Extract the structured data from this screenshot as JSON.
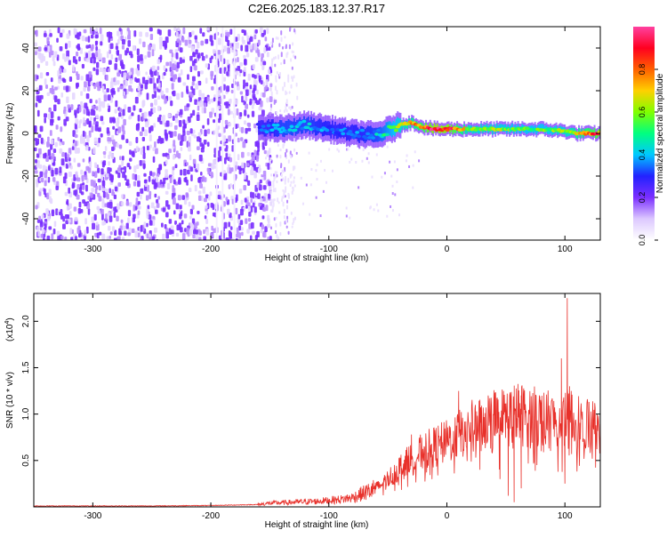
{
  "title": "C2E6.2025.183.12.37.R17",
  "chart_data": [
    {
      "type": "heatmap",
      "xlabel": "Height of straight line (km)",
      "ylabel": "Frequency (Hz)",
      "xlim": [
        -350,
        130
      ],
      "ylim": [
        -50,
        50
      ],
      "x_ticks": [
        -300,
        -200,
        -100,
        0,
        100
      ],
      "x_tick_labels": [
        "-300",
        "-200",
        "-100",
        "0",
        "100"
      ],
      "y_ticks": [
        -40,
        -20,
        0,
        20,
        40
      ],
      "y_tick_labels": [
        "-40",
        "-20",
        "0",
        "20",
        "40"
      ],
      "colorbar": {
        "label": "Normalized spectral amplitude",
        "range": [
          0.0,
          1.0
        ],
        "ticks": [
          0.0,
          0.2,
          0.4,
          0.6,
          0.8
        ],
        "tick_labels": [
          "0.0",
          "0.2",
          "0.4",
          "0.6",
          "0.8"
        ],
        "colormap": [
          "#ffffff",
          "#dcc8ff",
          "#7b2fff",
          "#2222ff",
          "#00c8ff",
          "#00ff80",
          "#80ff00",
          "#ffd000",
          "#ff6000",
          "#ff0020",
          "#ff40a0"
        ]
      },
      "noise_region_x": [
        -350,
        -150
      ],
      "signal_track": {
        "x": [
          -160,
          -140,
          -120,
          -100,
          -80,
          -60,
          -40,
          -30,
          -20,
          -10,
          0,
          20,
          40,
          60,
          80,
          100,
          110,
          130
        ],
        "freq": [
          3,
          2,
          4,
          2,
          0,
          -1,
          4,
          5,
          3,
          2,
          2,
          2,
          2,
          2,
          2,
          1,
          0,
          0
        ],
        "amplitude": [
          0.3,
          0.4,
          0.4,
          0.35,
          0.35,
          0.4,
          0.6,
          0.7,
          0.8,
          0.95,
          0.9,
          0.6,
          0.6,
          0.55,
          0.55,
          0.6,
          0.7,
          0.85
        ]
      },
      "grid": false
    },
    {
      "type": "line",
      "xlabel": "Height of straight line (km)",
      "ylabel": "SNR (10 * v/v)",
      "y_multiplier_label": "(x10",
      "y_multiplier_exp": "4",
      "y_multiplier_close": ")",
      "xlim": [
        -350,
        130
      ],
      "ylim": [
        0,
        2.3
      ],
      "x_ticks": [
        -300,
        -200,
        -100,
        0,
        100
      ],
      "x_tick_labels": [
        "-300",
        "-200",
        "-100",
        "0",
        "100"
      ],
      "y_ticks": [
        0.5,
        1.0,
        1.5,
        2.0
      ],
      "y_tick_labels": [
        "0.5",
        "1.0",
        "1.5",
        "2.0"
      ],
      "line_color": "#e8302a",
      "series": [
        {
          "x": [
            -350,
            -300,
            -250,
            -200,
            -180,
            -160,
            -150,
            -130,
            -110,
            -100,
            -90,
            -80,
            -70,
            -60,
            -50,
            -40,
            -30,
            -20,
            -10,
            0,
            10,
            20,
            30,
            40,
            50,
            60,
            70,
            80,
            90,
            100,
            105,
            110,
            120,
            130
          ],
          "values": [
            0.01,
            0.01,
            0.01,
            0.015,
            0.02,
            0.025,
            0.04,
            0.05,
            0.06,
            0.07,
            0.08,
            0.1,
            0.15,
            0.2,
            0.3,
            0.42,
            0.52,
            0.6,
            0.65,
            0.7,
            0.78,
            0.85,
            0.92,
            0.95,
            0.97,
            1.0,
            0.98,
            0.95,
            0.92,
            0.95,
            0.93,
            0.92,
            0.9,
            0.84
          ],
          "spikes": [
            {
              "x": 10,
              "value": 1.25
            },
            {
              "x": -30,
              "value": 0.78
            },
            {
              "x": 97,
              "value": 1.6
            },
            {
              "x": 102,
              "value": 2.25
            },
            {
              "x": 104,
              "value": 1.3
            }
          ],
          "dips": [
            {
              "x": 28,
              "value": 0.4
            },
            {
              "x": 45,
              "value": 0.3
            },
            {
              "x": 52,
              "value": 0.12
            },
            {
              "x": 57,
              "value": 0.05
            },
            {
              "x": 63,
              "value": 0.2
            },
            {
              "x": 80,
              "value": 0.6
            },
            {
              "x": 100,
              "value": 0.25
            }
          ]
        }
      ]
    }
  ]
}
